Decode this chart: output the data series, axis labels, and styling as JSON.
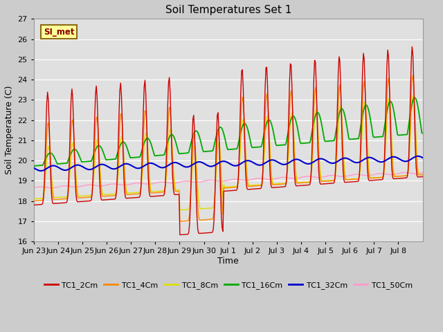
{
  "title": "Soil Temperatures Set 1",
  "xlabel": "Time",
  "ylabel": "Soil Temperature (C)",
  "ylim": [
    16.0,
    27.0
  ],
  "yticks": [
    16.0,
    17.0,
    18.0,
    19.0,
    20.0,
    21.0,
    22.0,
    23.0,
    24.0,
    25.0,
    26.0,
    27.0
  ],
  "fig_bg_color": "#cccccc",
  "plot_bg_color": "#e0e0e0",
  "annotation_text": "SI_met",
  "annotation_bg": "#ffff99",
  "annotation_border": "#8b6914",
  "series_colors": {
    "TC1_2Cm": "#cc0000",
    "TC1_4Cm": "#ff8800",
    "TC1_8Cm": "#dddd00",
    "TC1_16Cm": "#00aa00",
    "TC1_32Cm": "#0000cc",
    "TC1_50Cm": "#ff99cc"
  },
  "legend_colors": [
    "#cc0000",
    "#ff8800",
    "#dddd00",
    "#00aa00",
    "#0000cc",
    "#ff99cc"
  ],
  "legend_labels": [
    "TC1_2Cm",
    "TC1_4Cm",
    "TC1_8Cm",
    "TC1_16Cm",
    "TC1_32Cm",
    "TC1_50Cm"
  ],
  "xtick_labels": [
    "Jun 23",
    "Jun 24",
    "Jun 25",
    "Jun 26",
    "Jun 27",
    "Jun 28",
    "Jun 29",
    "Jun 30",
    "Jul 1",
    "Jul 2",
    "Jul 3",
    "Jul 4",
    "Jul 5",
    "Jul 6",
    "Jul 7",
    "Jul 8"
  ],
  "n_points": 480
}
